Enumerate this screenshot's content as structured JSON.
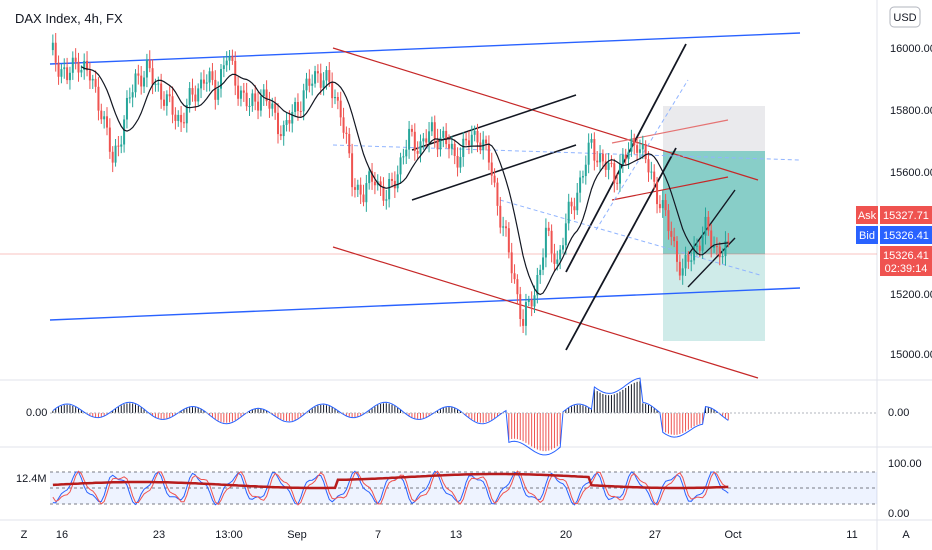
{
  "header": {
    "title": "DAX Index, 4h, FX"
  },
  "currency_button": "USD",
  "price_axis": {
    "ticks": [
      "16000.00",
      "15800.00",
      "15600.00",
      "15400.00",
      "15200.00",
      "15000.00"
    ]
  },
  "quote": {
    "ask_label": "Ask",
    "ask_value": "15327.71",
    "bid_label": "Bid",
    "bid_value": "15326.41",
    "last_value": "15326.41",
    "countdown": "02:39:14"
  },
  "osc1": {
    "label": "0.00",
    "axis_tick": "0.00"
  },
  "osc2": {
    "label": "12.4M",
    "axis_ticks": [
      "100.00",
      "0.00"
    ]
  },
  "time_axis": {
    "ticks": [
      "16",
      "23",
      "13:00",
      "Sep",
      "7",
      "13",
      "20",
      "27",
      "Oct",
      "11"
    ],
    "left_button": "Z",
    "right_button": "A"
  },
  "colors": {
    "bull": "#26a69a",
    "bear": "#ef5350",
    "blue_line": "#2962ff",
    "red_line": "#c62828",
    "ask": "#ef5350",
    "bid": "#2962ff",
    "black": "#131722"
  },
  "chart_data": {
    "type": "candlestick",
    "title": "DAX Index, 4h, FX",
    "ylim": [
      14950,
      16060
    ],
    "y_ticks": [
      16000,
      15800,
      15600,
      15400,
      15200,
      15000
    ],
    "x_ticks": [
      "16",
      "23",
      "13:00",
      "Sep",
      "7",
      "13",
      "20",
      "27",
      "Oct",
      "11"
    ],
    "last_price": 15326.41,
    "ask": 15327.71,
    "bid": 15326.41,
    "close_path": [
      [
        0,
        15990
      ],
      [
        6,
        15900
      ],
      [
        10,
        15960
      ],
      [
        14,
        15900
      ],
      [
        18,
        15800
      ],
      [
        22,
        15620
      ],
      [
        26,
        15760
      ],
      [
        30,
        15900
      ],
      [
        34,
        15920
      ],
      [
        38,
        15870
      ],
      [
        42,
        15800
      ],
      [
        46,
        15760
      ],
      [
        50,
        15840
      ],
      [
        54,
        15900
      ],
      [
        58,
        15860
      ],
      [
        62,
        15970
      ],
      [
        66,
        15870
      ],
      [
        70,
        15800
      ],
      [
        74,
        15850
      ],
      [
        78,
        15790
      ],
      [
        82,
        15720
      ],
      [
        86,
        15800
      ],
      [
        90,
        15860
      ],
      [
        94,
        15920
      ],
      [
        98,
        15870
      ],
      [
        102,
        15800
      ],
      [
        106,
        15560
      ],
      [
        110,
        15520
      ],
      [
        114,
        15580
      ],
      [
        118,
        15500
      ],
      [
        122,
        15600
      ],
      [
        126,
        15700
      ],
      [
        130,
        15680
      ],
      [
        134,
        15720
      ],
      [
        138,
        15700
      ],
      [
        142,
        15640
      ],
      [
        146,
        15680
      ],
      [
        150,
        15720
      ],
      [
        154,
        15630
      ],
      [
        158,
        15450
      ],
      [
        162,
        15280
      ],
      [
        166,
        15100
      ],
      [
        170,
        15200
      ],
      [
        174,
        15380
      ],
      [
        178,
        15300
      ],
      [
        182,
        15450
      ],
      [
        186,
        15560
      ],
      [
        190,
        15680
      ],
      [
        194,
        15620
      ],
      [
        198,
        15580
      ],
      [
        202,
        15640
      ],
      [
        206,
        15700
      ],
      [
        210,
        15600
      ],
      [
        214,
        15500
      ],
      [
        218,
        15380
      ],
      [
        222,
        15260
      ],
      [
        226,
        15340
      ],
      [
        230,
        15400
      ],
      [
        234,
        15340
      ],
      [
        238,
        15326
      ]
    ]
  }
}
